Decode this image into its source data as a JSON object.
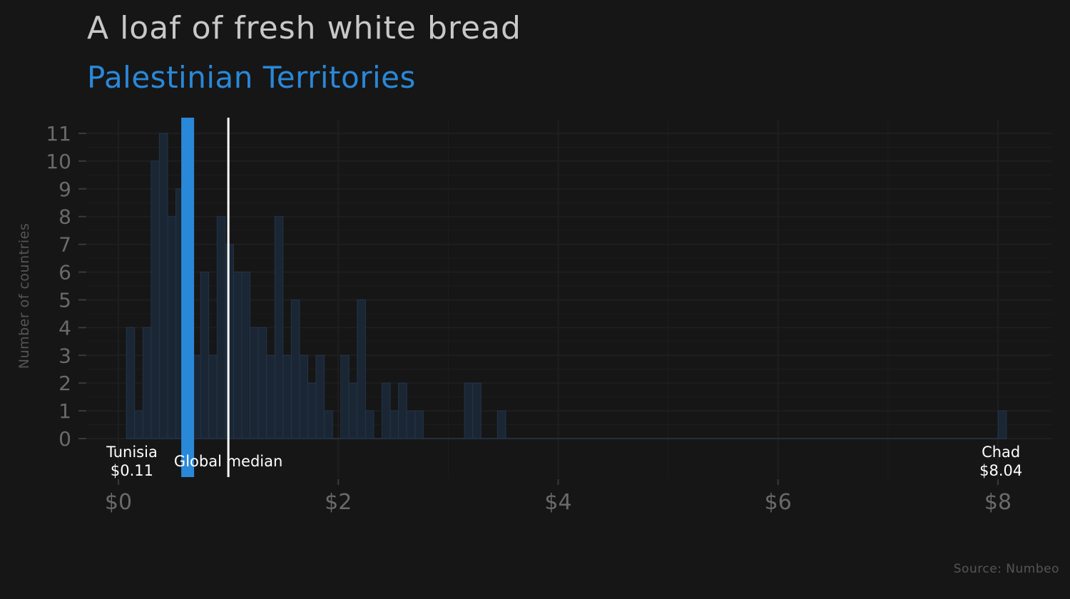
{
  "chart_data": {
    "type": "bar",
    "title": "A loaf of fresh white bread",
    "subtitle": "Palestinian Territories",
    "ylabel": "Number of countries",
    "xlabel": "",
    "source": "Source: Numbeo",
    "x_ticks": [
      "$0",
      "$2",
      "$4",
      "$6",
      "$8"
    ],
    "x_tick_values": [
      0,
      2,
      4,
      6,
      8
    ],
    "y_ticks": [
      0,
      1,
      2,
      3,
      4,
      5,
      6,
      7,
      8,
      9,
      10,
      11
    ],
    "xlim": [
      -0.25,
      8.5
    ],
    "ylim": [
      0,
      11.4
    ],
    "grid": true,
    "bin_width": 0.075,
    "bins": [
      {
        "x": 0.11,
        "count": 4
      },
      {
        "x": 0.185,
        "count": 1
      },
      {
        "x": 0.26,
        "count": 4
      },
      {
        "x": 0.335,
        "count": 10
      },
      {
        "x": 0.41,
        "count": 11
      },
      {
        "x": 0.485,
        "count": 8
      },
      {
        "x": 0.56,
        "count": 9
      },
      {
        "x": 0.635,
        "count": 11
      },
      {
        "x": 0.71,
        "count": 3
      },
      {
        "x": 0.785,
        "count": 6
      },
      {
        "x": 0.86,
        "count": 3
      },
      {
        "x": 0.935,
        "count": 8
      },
      {
        "x": 1.01,
        "count": 7
      },
      {
        "x": 1.085,
        "count": 6
      },
      {
        "x": 1.16,
        "count": 6
      },
      {
        "x": 1.235,
        "count": 4
      },
      {
        "x": 1.31,
        "count": 4
      },
      {
        "x": 1.385,
        "count": 3
      },
      {
        "x": 1.46,
        "count": 8
      },
      {
        "x": 1.535,
        "count": 3
      },
      {
        "x": 1.61,
        "count": 5
      },
      {
        "x": 1.685,
        "count": 3
      },
      {
        "x": 1.76,
        "count": 2
      },
      {
        "x": 1.835,
        "count": 3
      },
      {
        "x": 1.91,
        "count": 1
      },
      {
        "x": 1.985,
        "count": 0
      },
      {
        "x": 2.06,
        "count": 3
      },
      {
        "x": 2.135,
        "count": 2
      },
      {
        "x": 2.21,
        "count": 5
      },
      {
        "x": 2.285,
        "count": 1
      },
      {
        "x": 2.36,
        "count": 0
      },
      {
        "x": 2.435,
        "count": 2
      },
      {
        "x": 2.51,
        "count": 1
      },
      {
        "x": 2.585,
        "count": 2
      },
      {
        "x": 2.66,
        "count": 1
      },
      {
        "x": 2.735,
        "count": 1
      },
      {
        "x": 3.185,
        "count": 2
      },
      {
        "x": 3.26,
        "count": 2
      },
      {
        "x": 3.485,
        "count": 1
      },
      {
        "x": 8.04,
        "count": 1
      }
    ],
    "highlight": {
      "name": "Palestinian Territories",
      "x": 0.63,
      "color": "#2a88d8"
    },
    "median": {
      "label": "Global median",
      "x": 1.0,
      "color": "#ffffff"
    },
    "annotations": [
      {
        "country": "Tunisia",
        "value": "$0.11",
        "x": 0.11
      },
      {
        "country": "Chad",
        "value": "$8.04",
        "x": 8.04
      }
    ],
    "colors": {
      "background": "#161616",
      "bar_fill": "#1a2634",
      "bar_stroke": "#233447",
      "grid": "#1e1e1e",
      "tick": "#6a6a6a"
    }
  }
}
